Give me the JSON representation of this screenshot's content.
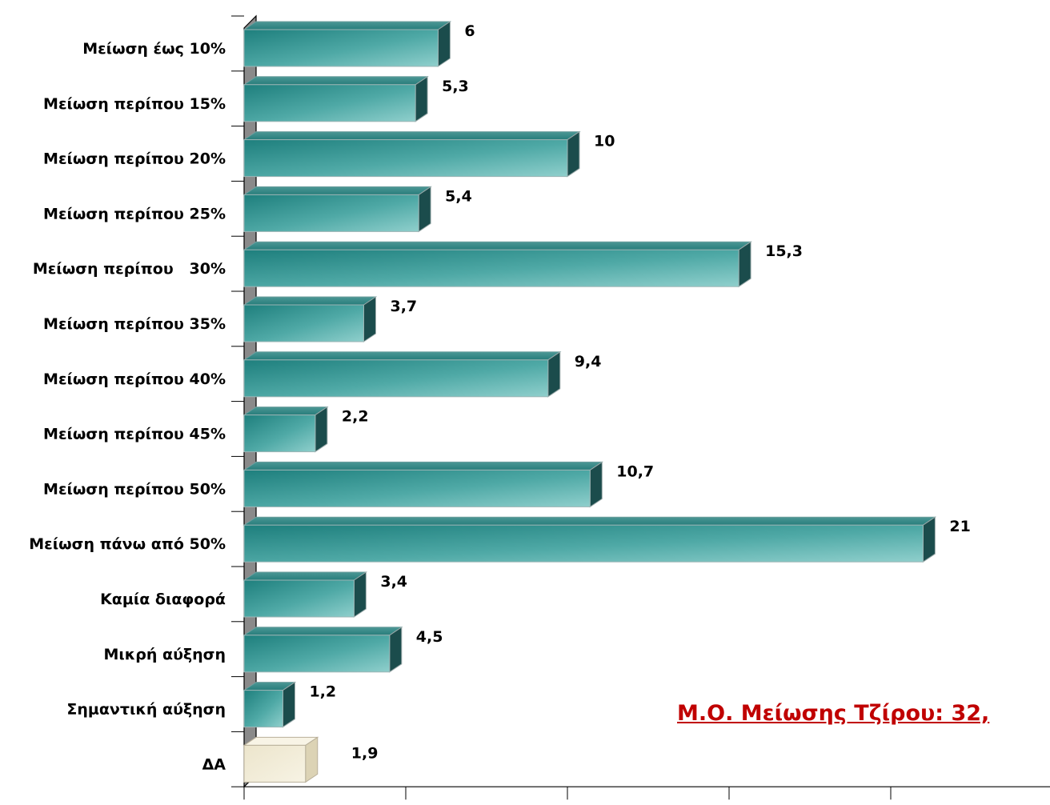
{
  "chart_data": {
    "type": "bar",
    "orientation": "horizontal",
    "categories": [
      "Μείωση έως 10%",
      "Μείωση περίπου 15%",
      "Μείωση περίπου 20%",
      "Μείωση περίπου 25%",
      "Μείωση περίπου   30%",
      "Μείωση περίπου 35%",
      "Μείωση περίπου 40%",
      "Μείωση περίπου 45%",
      "Μείωση περίπου 50%",
      "Μείωση πάνω από 50%",
      "Καμία διαφορά",
      "Μικρή αύξηση",
      "Σημαντική αύξηση",
      "ΔΑ"
    ],
    "values": [
      6,
      5.3,
      10,
      5.4,
      15.3,
      3.7,
      9.4,
      2.2,
      10.7,
      21,
      3.4,
      4.5,
      1.2,
      1.9
    ],
    "value_labels": [
      "6",
      "5,3",
      "10",
      "5,4",
      "15,3",
      "3,7",
      "9,4",
      "2,2",
      "10,7",
      "21",
      "3,4",
      "4,5",
      "1,2",
      "1,9"
    ],
    "highlight_category": "ΔΑ",
    "xlim": [
      0,
      25
    ],
    "grid": false,
    "colors": {
      "bar_front": "#2f9a98",
      "bar_front_light": "#8fcfcc",
      "bar_top": "#2a8785",
      "bar_side": "#1b4c4c",
      "highlight_front": "#efe9d4",
      "highlight_top": "#f8f4e6",
      "highlight_side": "#dcd3b5",
      "axis_wall": "#8a8a8a"
    }
  },
  "annotation": {
    "text": "Μ.Ο. Μείωσης Τζίρου: 32,"
  }
}
